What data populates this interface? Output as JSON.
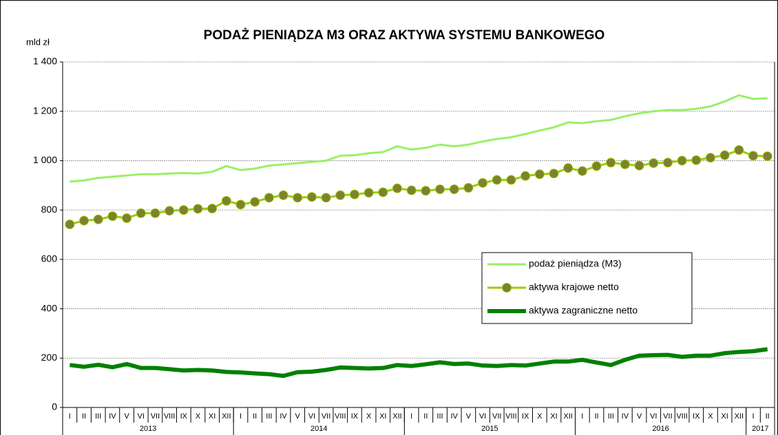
{
  "chart_data": {
    "type": "line",
    "title": "PODAŻ PIENIĄDZA M3 ORAZ AKTYWA SYSTEMU BANKOWEGO",
    "y_label": "mld zł",
    "categories": [
      "I",
      "II",
      "III",
      "IV",
      "V",
      "VI",
      "VII",
      "VIII",
      "IX",
      "X",
      "XI",
      "XII",
      "I",
      "II",
      "III",
      "IV",
      "V",
      "VI",
      "VII",
      "VIII",
      "IX",
      "X",
      "XI",
      "XII",
      "I",
      "II",
      "III",
      "IV",
      "V",
      "VI",
      "VII",
      "VIII",
      "IX",
      "X",
      "XI",
      "XII",
      "I",
      "II",
      "III",
      "IV",
      "V",
      "VI",
      "VII",
      "VIII",
      "IX",
      "X",
      "XI",
      "XII",
      "I",
      "II"
    ],
    "groups": [
      {
        "label": "2013",
        "count": 12
      },
      {
        "label": "2014",
        "count": 12
      },
      {
        "label": "2015",
        "count": 12
      },
      {
        "label": "2016",
        "count": 12
      },
      {
        "label": "2017",
        "count": 2
      }
    ],
    "series": [
      {
        "name": "podaż pieniądza (M3)",
        "color": "#99f066",
        "width": 3,
        "marker": false,
        "values": [
          915,
          920,
          930,
          935,
          940,
          945,
          945,
          948,
          950,
          948,
          955,
          978,
          962,
          968,
          980,
          985,
          990,
          995,
          1000,
          1020,
          1022,
          1030,
          1035,
          1058,
          1045,
          1052,
          1065,
          1058,
          1065,
          1078,
          1088,
          1095,
          1108,
          1122,
          1135,
          1155,
          1152,
          1160,
          1165,
          1180,
          1192,
          1200,
          1205,
          1205,
          1210,
          1220,
          1240,
          1265,
          1250,
          1253
        ]
      },
      {
        "name": "aktywa krajowe netto",
        "color": "#99cc00",
        "marker_color": "#808030",
        "width": 3,
        "marker": true,
        "values": [
          742,
          757,
          762,
          775,
          767,
          787,
          787,
          797,
          800,
          805,
          806,
          837,
          822,
          833,
          850,
          860,
          850,
          853,
          850,
          860,
          863,
          870,
          872,
          888,
          880,
          878,
          884,
          884,
          890,
          910,
          922,
          922,
          938,
          945,
          948,
          970,
          958,
          978,
          992,
          985,
          980,
          990,
          992,
          1000,
          1002,
          1012,
          1022,
          1043,
          1020,
          1018
        ]
      },
      {
        "name": "aktywa zagraniczne netto",
        "color": "#008000",
        "width": 6,
        "marker": false,
        "values": [
          172,
          165,
          173,
          163,
          176,
          160,
          160,
          155,
          150,
          152,
          150,
          144,
          142,
          138,
          135,
          128,
          143,
          145,
          152,
          162,
          160,
          158,
          160,
          172,
          168,
          175,
          183,
          176,
          178,
          170,
          168,
          172,
          170,
          178,
          186,
          186,
          193,
          182,
          172,
          193,
          210,
          212,
          213,
          205,
          210,
          210,
          220,
          225,
          228,
          236
        ]
      }
    ],
    "ylim": [
      0,
      1400
    ],
    "yticks": [
      0,
      200,
      400,
      600,
      800,
      {
        "value": 1000,
        "label": "1 000"
      },
      {
        "value": 1200,
        "label": "1 200"
      },
      {
        "value": 1400,
        "label": "1 400"
      }
    ],
    "grid": true
  }
}
